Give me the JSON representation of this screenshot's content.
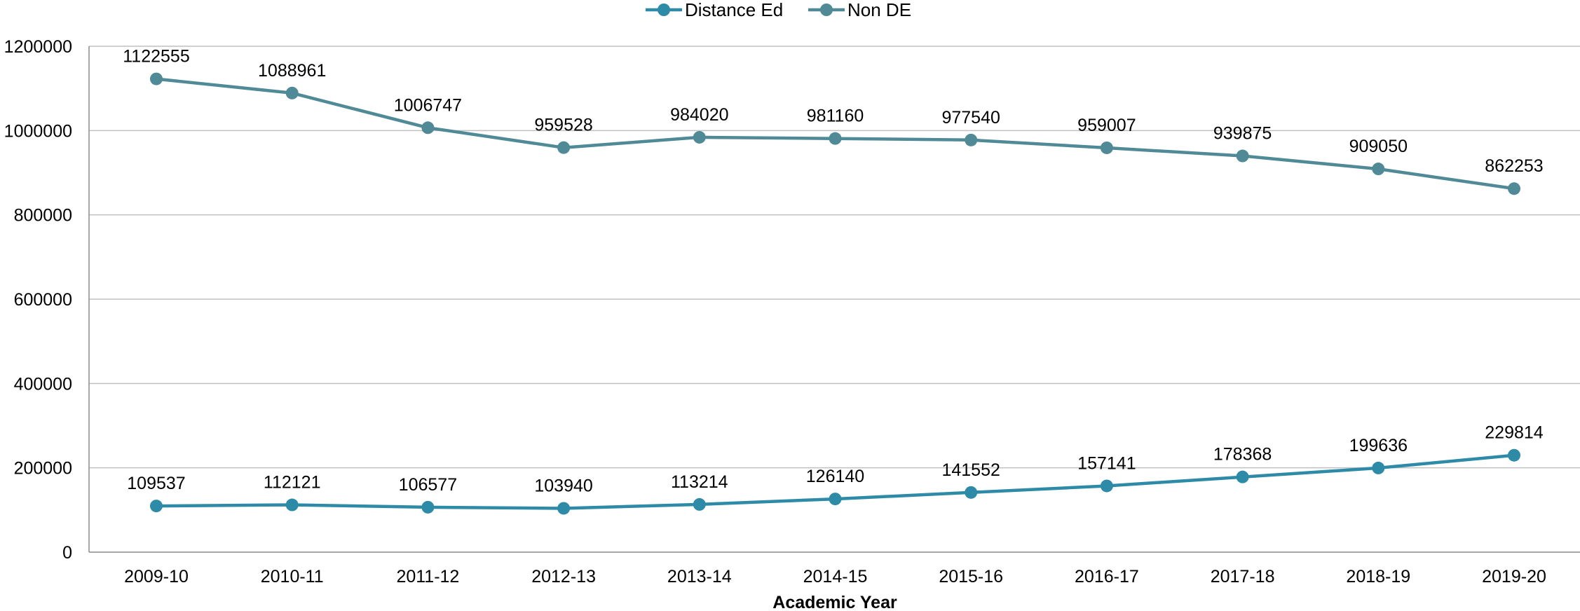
{
  "chart_data": {
    "type": "line",
    "title": "",
    "xlabel": "Academic Year",
    "ylabel": "",
    "categories": [
      "2009-10",
      "2010-11",
      "2011-12",
      "2012-13",
      "2013-14",
      "2014-15",
      "2015-16",
      "2016-17",
      "2017-18",
      "2018-19",
      "2019-20"
    ],
    "ylim": [
      0,
      1200000
    ],
    "yticks": [
      0,
      200000,
      400000,
      600000,
      800000,
      1000000,
      1200000
    ],
    "grid": true,
    "legend_position": "top-center",
    "series": [
      {
        "name": "Distance Ed",
        "color": "#2E8BA7",
        "values": [
          109537,
          112121,
          106577,
          103940,
          113214,
          126140,
          141552,
          157141,
          178368,
          199636,
          229814
        ]
      },
      {
        "name": "Non DE",
        "color": "#4F8A96",
        "values": [
          1122555,
          1088961,
          1006747,
          959528,
          984020,
          981160,
          977540,
          959007,
          939875,
          909050,
          862253
        ]
      }
    ]
  }
}
